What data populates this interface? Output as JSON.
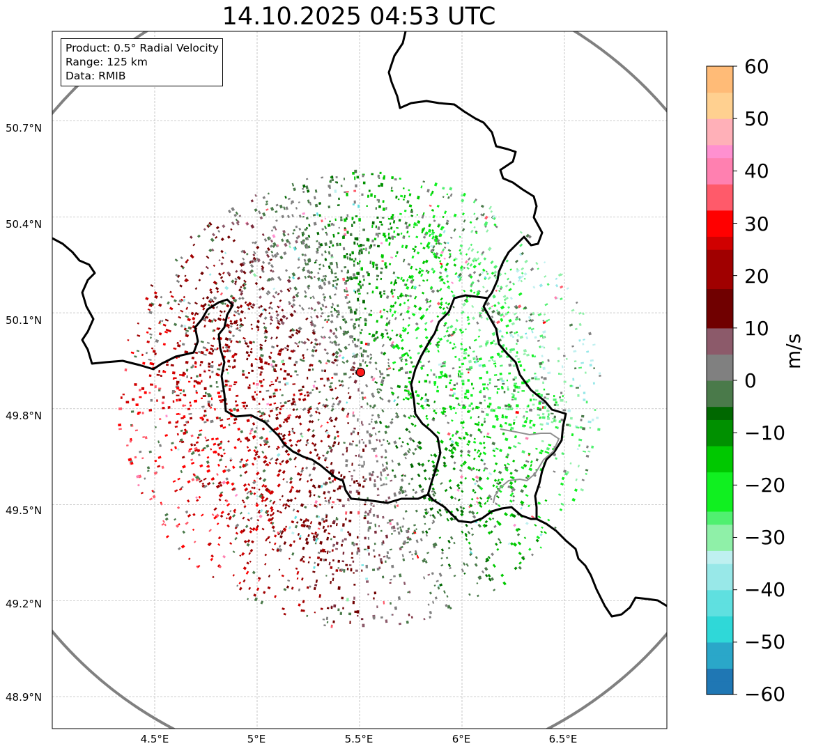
{
  "title": "14.10.2025 04:53 UTC",
  "info": {
    "product": "Product: 0.5° Radial Velocity",
    "range": "Range: 125 km",
    "data": "Data: RMIB"
  },
  "axes": {
    "lat_labels": [
      "50.7°N",
      "50.4°N",
      "50.1°N",
      "49.8°N",
      "49.5°N",
      "49.2°N",
      "48.9°N"
    ],
    "lat_values": [
      50.7,
      50.4,
      50.1,
      49.8,
      49.5,
      49.2,
      48.9
    ],
    "lon_labels": [
      "4.5°E",
      "5°E",
      "5.5°E",
      "6°E",
      "6.5°E"
    ],
    "lon_values": [
      4.5,
      5.0,
      5.5,
      6.0,
      6.5
    ],
    "lon_range": [
      4.0,
      7.0
    ],
    "lat_range": [
      48.8,
      50.98
    ]
  },
  "radar": {
    "lon": 5.505,
    "lat": 49.914,
    "range_km": 125
  },
  "colorbar": {
    "label": "m/s",
    "min": -60,
    "max": 60,
    "tick_labels": [
      "60",
      "50",
      "40",
      "30",
      "20",
      "10",
      "0",
      "−10",
      "−20",
      "−30",
      "−40",
      "−50",
      "−60"
    ],
    "tick_values": [
      60,
      50,
      40,
      30,
      20,
      10,
      0,
      -10,
      -20,
      -30,
      -40,
      -50,
      -60
    ]
  },
  "colors": {
    "ring": "#808080",
    "radar_marker": "#ff1a1a",
    "border": "#000000",
    "grid": "#b0b0b0"
  }
}
